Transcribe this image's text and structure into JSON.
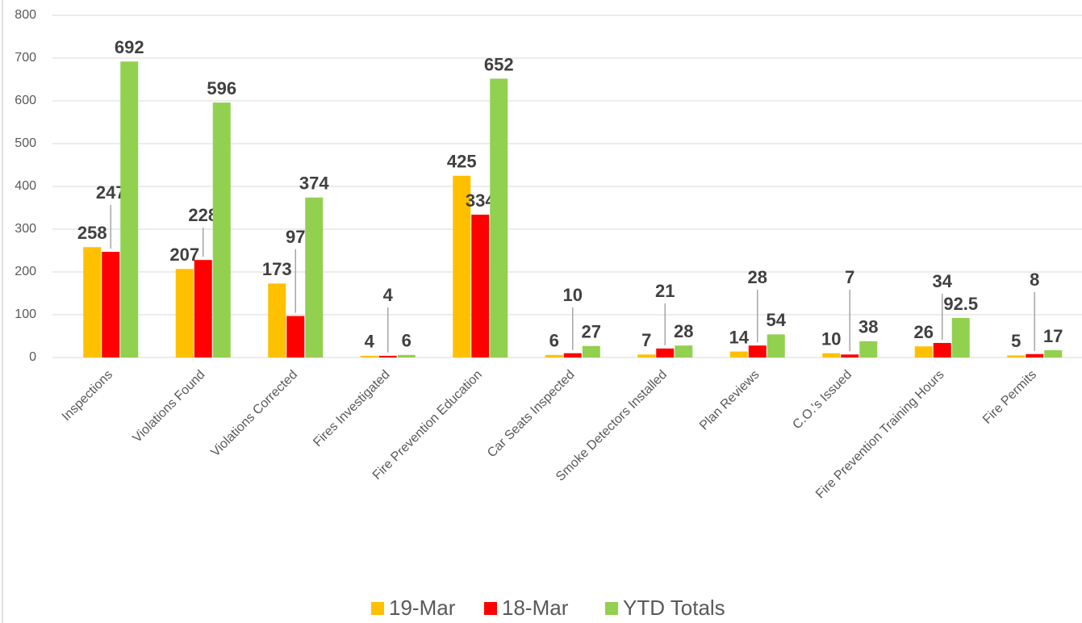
{
  "chart_data": {
    "type": "bar",
    "categories": [
      "Inspections",
      "Violations Found",
      "Violations Corrected",
      "Fires Investigated",
      "Fire Prevention Education",
      "Car Seats Inspected",
      "Smoke Detectors Installed",
      "Plan Reviews",
      "C.O.'s Issued",
      "Fire Prevention Training Hours",
      "Fire Permits"
    ],
    "series": [
      {
        "name": "19-Mar",
        "color": "#FFC000",
        "values": [
          258,
          207,
          173,
          4,
          425,
          6,
          7,
          14,
          10,
          26,
          5
        ]
      },
      {
        "name": "18-Mar",
        "color": "#FF0000",
        "values": [
          247,
          228,
          97,
          4,
          334,
          10,
          21,
          28,
          7,
          34,
          8
        ]
      },
      {
        "name": "YTD Totals",
        "color": "#92D050",
        "values": [
          692,
          596,
          374,
          6,
          652,
          27,
          28,
          54,
          38,
          92.5,
          17
        ]
      }
    ],
    "ylim": [
      0,
      800
    ],
    "yticks": [
      0,
      100,
      200,
      300,
      400,
      500,
      600,
      700,
      800
    ],
    "grid": true,
    "legend": "bottom"
  }
}
